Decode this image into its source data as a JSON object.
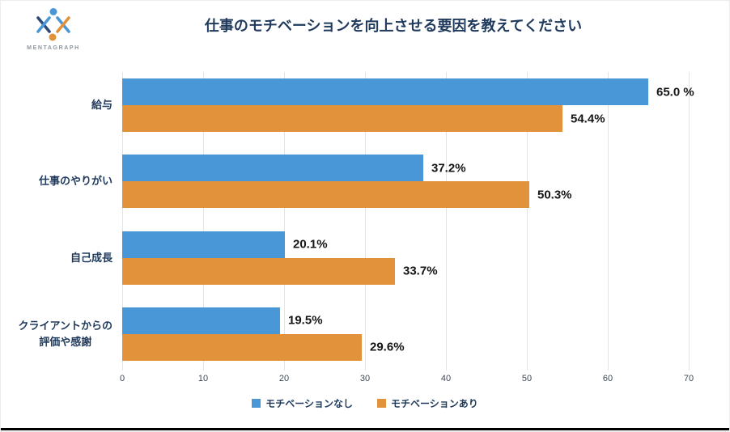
{
  "logo": {
    "brand": "MENTAGRAPH"
  },
  "title": "仕事のモチベーションを向上させる要因を教えてください",
  "chart_data": {
    "type": "bar",
    "orientation": "horizontal",
    "title": "仕事のモチベーションを向上させる要因を教えてください",
    "categories": [
      {
        "lines": [
          "給与"
        ]
      },
      {
        "lines": [
          "仕事のやりがい"
        ]
      },
      {
        "lines": [
          "自己成長"
        ]
      },
      {
        "lines": [
          "クライアントからの",
          "評価や感謝"
        ]
      }
    ],
    "series": [
      {
        "name": "モチベーションなし",
        "color": "#4a97d8",
        "values": [
          65.0,
          37.2,
          20.1,
          19.5
        ],
        "labels": [
          "65.0 %",
          "37.2%",
          "20.1%",
          "19.5%"
        ]
      },
      {
        "name": "モチベーションあり",
        "color": "#e2923a",
        "values": [
          54.4,
          50.3,
          33.7,
          29.6
        ],
        "labels": [
          "54.4%",
          "50.3%",
          "33.7%",
          "29.6%"
        ]
      }
    ],
    "xlim": [
      0,
      70
    ],
    "xticks": [
      0,
      10,
      20,
      30,
      40,
      50,
      60,
      70
    ],
    "grid": true,
    "legend_position": "bottom"
  }
}
